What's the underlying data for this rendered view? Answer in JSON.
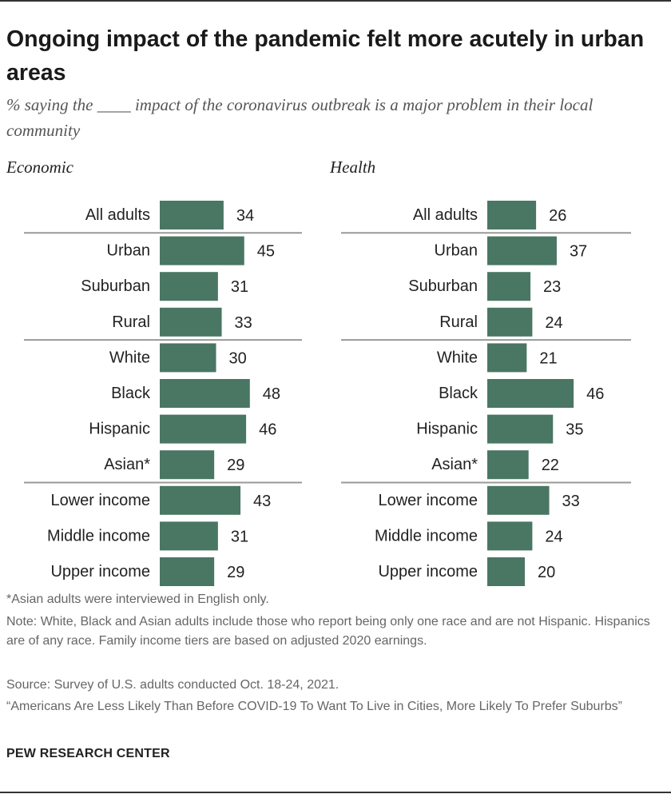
{
  "title": "Ongoing impact of the pandemic felt more acutely in urban areas",
  "subtitle": "% saying the ____ impact of the coronavirus outbreak is a major problem in their local community",
  "colors": {
    "bar": "#4a7664",
    "divider": "#999999",
    "rule": "#333333"
  },
  "chart_data": {
    "type": "bar",
    "orientation": "horizontal",
    "categories": [
      "All adults",
      "Urban",
      "Suburban",
      "Rural",
      "White",
      "Black",
      "Hispanic",
      "Asian*",
      "Lower income",
      "Middle income",
      "Upper income"
    ],
    "group_breaks_after": [
      0,
      3,
      7
    ],
    "series": [
      {
        "name": "Economic",
        "values": [
          34,
          45,
          31,
          33,
          30,
          48,
          46,
          29,
          43,
          31,
          29
        ]
      },
      {
        "name": "Health",
        "values": [
          26,
          37,
          23,
          24,
          21,
          46,
          35,
          22,
          33,
          24,
          20
        ]
      }
    ],
    "xlim": [
      0,
      100
    ],
    "xlabel": "",
    "ylabel": ""
  },
  "footnotes": {
    "asian": "*Asian adults were interviewed in English only.",
    "note": "Note: White, Black and Asian adults include those who report being only one race and are not Hispanic. Hispanics are of any race. Family income tiers are based on adjusted 2020 earnings.",
    "source": "Source: Survey of U.S. adults conducted Oct. 18-24, 2021.",
    "report": "“Americans Are Less Likely Than Before COVID-19 To Want To Live in Cities, More Likely To Prefer Suburbs”"
  },
  "org": "PEW RESEARCH CENTER"
}
